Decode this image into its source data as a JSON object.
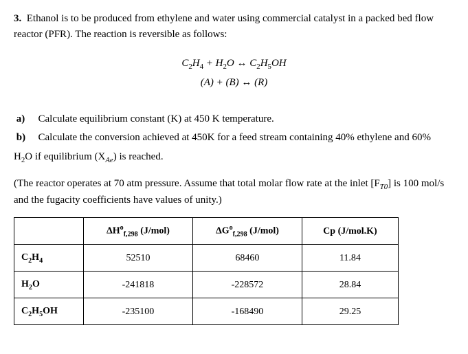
{
  "question": {
    "number": "3.",
    "intro": "Ethanol is to be produced from ethylene and water using commercial catalyst in a packed bed flow reactor (PFR). The reaction is reversible as follows:"
  },
  "equation": {
    "line1_lhs_a": "C",
    "line1_lhs_a_sub": "2",
    "line1_lhs_b": "H",
    "line1_lhs_b_sub": "4",
    "line1_mid_a": "H",
    "line1_mid_a_sub": "2",
    "line1_mid_b": "O",
    "line1_rhs_a": "C",
    "line1_rhs_a_sub": "2",
    "line1_rhs_b": "H",
    "line1_rhs_b_sub": "5",
    "line1_rhs_c": "OH",
    "plus": " + ",
    "dblarrow": " ↔ ",
    "line2": "(A)  +  (B)   ↔   (R)"
  },
  "parts": {
    "a_lbl": "a)",
    "a_txt": "Calculate equilibrium constant (K) at 450 K temperature.",
    "b_lbl": "b)",
    "b_txt_pre": "Calculate the conversion achieved at 450K for a feed stream containing 40% ethylene and 60%",
    "b_txt_post_pre": "H",
    "b_txt_post_sub": "2",
    "b_txt_post_mid": "O if equilibrium (X",
    "b_txt_post_sub2": "Ae",
    "b_txt_post_end": ") is reached."
  },
  "note": {
    "pre": "(The reactor operates at 70 atm pressure. Assume that total molar flow rate at the inlet [F",
    "sub": "T0",
    "post": "] is 100 mol/s and the fugacity coefficients have values of unity.)"
  },
  "table": {
    "headers": {
      "blank": "",
      "h1_pre": "ΔH",
      "h1_sup": "o",
      "h1_sub": "f,298",
      "h1_post": " (J/mol)",
      "h2_pre": "ΔG",
      "h2_sup": "o",
      "h2_sub": "f,298",
      "h2_post": " (J/mol)",
      "h3": "Cp (J/mol.K)"
    },
    "rows": [
      {
        "sp_a": "C",
        "sp_a_s": "2",
        "sp_b": "H",
        "sp_b_s": "4",
        "sp_c": "",
        "sp_c_s": "",
        "sp_d": "",
        "dH": "52510",
        "dG": "68460",
        "cp": "11.84"
      },
      {
        "sp_a": "H",
        "sp_a_s": "2",
        "sp_b": "O",
        "sp_b_s": "",
        "sp_c": "",
        "sp_c_s": "",
        "sp_d": "",
        "dH": "-241818",
        "dG": "-228572",
        "cp": "28.84"
      },
      {
        "sp_a": "C",
        "sp_a_s": "2",
        "sp_b": "H",
        "sp_b_s": "5",
        "sp_c": "OH",
        "sp_c_s": "",
        "sp_d": "",
        "dH": "-235100",
        "dG": "-168490",
        "cp": "29.25"
      }
    ]
  }
}
